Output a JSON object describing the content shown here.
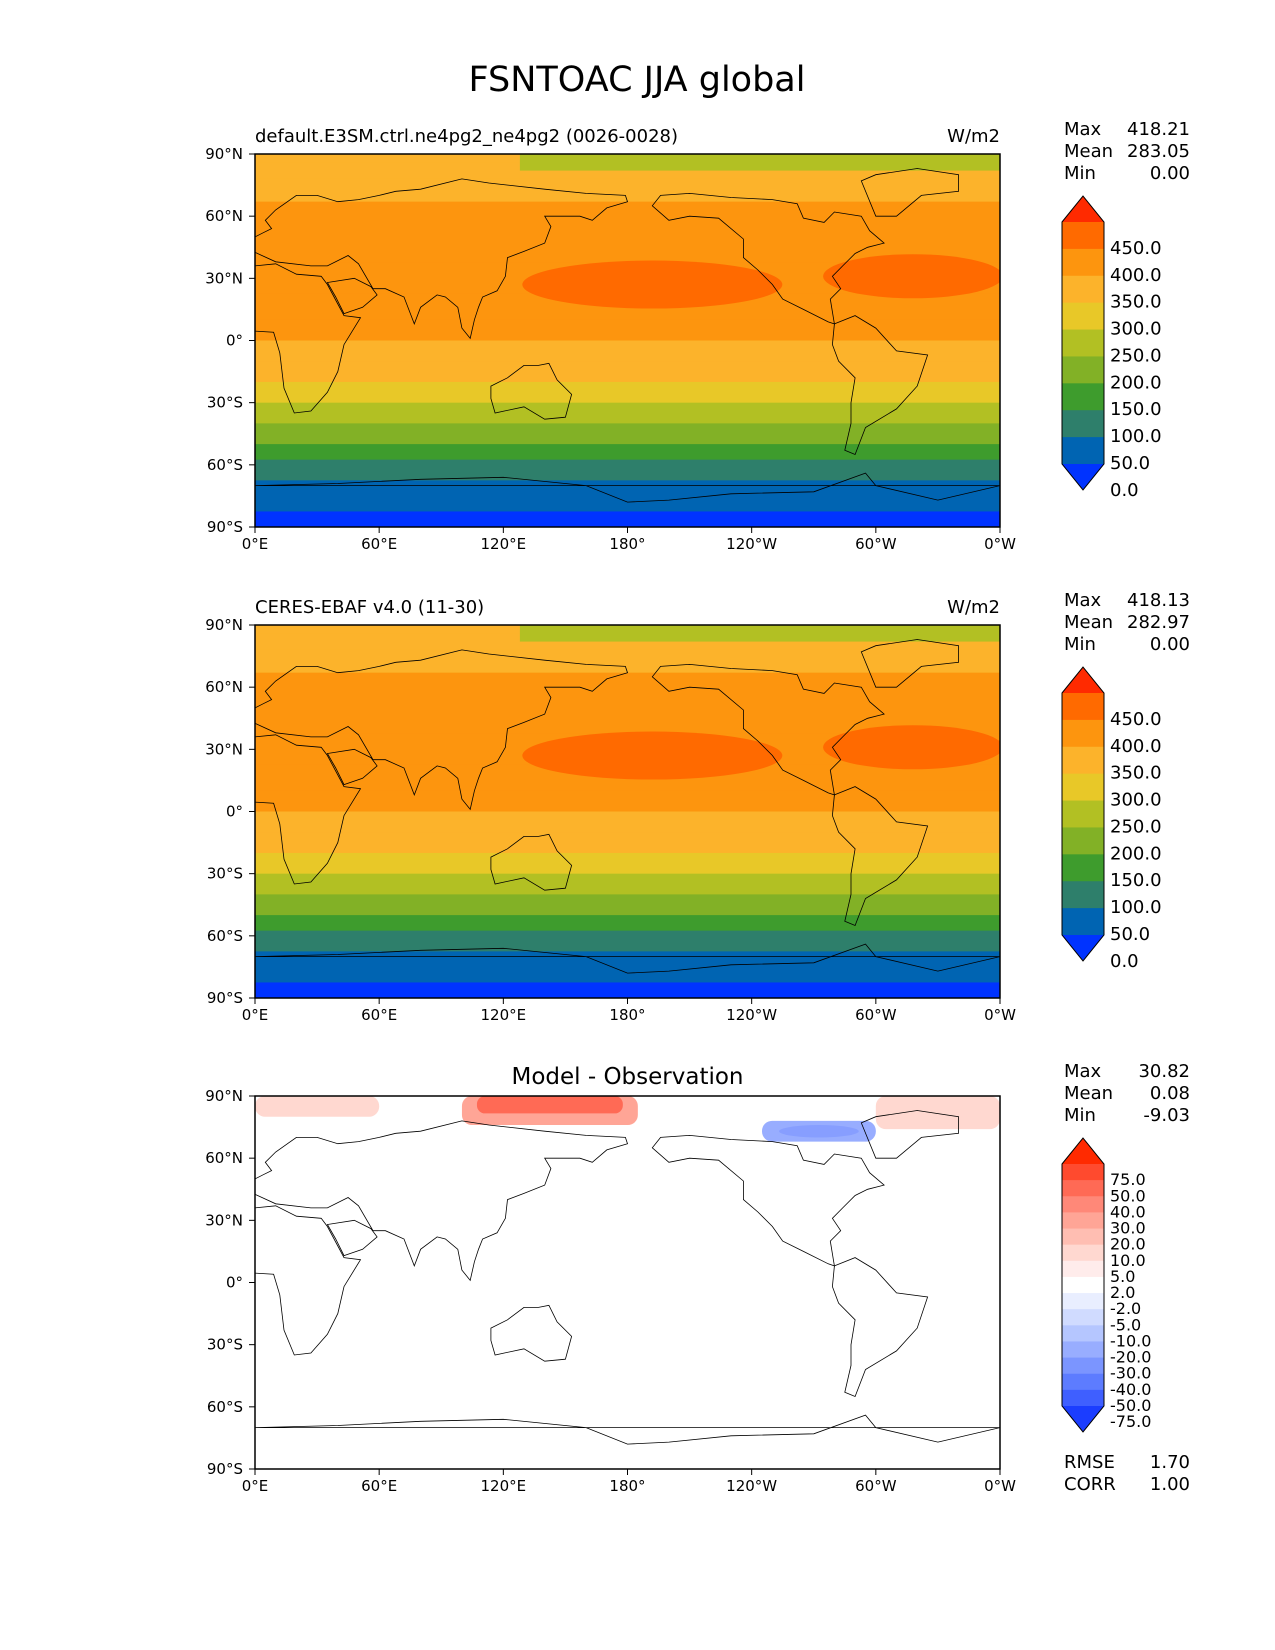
{
  "title": "FSNTOAC JJA global",
  "axes": {
    "lon_ticks": [
      "0°E",
      "60°E",
      "120°E",
      "180°",
      "120°W",
      "60°W",
      "0°W"
    ],
    "lat_ticks": [
      "90°N",
      "60°N",
      "30°N",
      "0°",
      "30°S",
      "60°S",
      "90°S"
    ]
  },
  "panels": [
    {
      "left_title": "default.E3SM.ctrl.ne4pg2_ne4pg2 (0026-0028)",
      "center_title": "",
      "units": "W/m2",
      "stats": [
        {
          "label": "Max",
          "value": "418.21"
        },
        {
          "label": "Mean",
          "value": "283.05"
        },
        {
          "label": "Min",
          "value": "0.00"
        }
      ],
      "colorbar_labels": [
        "450.0",
        "400.0",
        "350.0",
        "300.0",
        "250.0",
        "200.0",
        "150.0",
        "100.0",
        "50.0",
        "0.0"
      ],
      "footer": []
    },
    {
      "left_title": "CERES-EBAF v4.0 (11-30)",
      "center_title": "",
      "units": "W/m2",
      "stats": [
        {
          "label": "Max",
          "value": "418.13"
        },
        {
          "label": "Mean",
          "value": "282.97"
        },
        {
          "label": "Min",
          "value": "0.00"
        }
      ],
      "colorbar_labels": [
        "450.0",
        "400.0",
        "350.0",
        "300.0",
        "250.0",
        "200.0",
        "150.0",
        "100.0",
        "50.0",
        "0.0"
      ],
      "footer": []
    },
    {
      "left_title": "",
      "center_title": "Model - Observation",
      "units": "",
      "stats": [
        {
          "label": "Max",
          "value": "30.82"
        },
        {
          "label": "Mean",
          "value": "0.08"
        },
        {
          "label": "Min",
          "value": "-9.03"
        }
      ],
      "colorbar_labels": [
        "75.0",
        "50.0",
        "40.0",
        "30.0",
        "20.0",
        "10.0",
        "5.0",
        "2.0",
        "-2.0",
        "-5.0",
        "-10.0",
        "-20.0",
        "-30.0",
        "-40.0",
        "-50.0",
        "-75.0"
      ],
      "footer": [
        {
          "label": "RMSE",
          "value": "1.70"
        },
        {
          "label": "CORR",
          "value": "1.00"
        }
      ]
    }
  ],
  "colors": {
    "field_bands": [
      "#ff2a00",
      "#ff6a00",
      "#fd950e",
      "#fcb32b",
      "#e8c828",
      "#b2c023",
      "#82b126",
      "#3e9c2d",
      "#2e7f6b",
      "#0064b2",
      "#0033ff"
    ],
    "diff_scale": [
      "#ff2a00",
      "#ff4a2e",
      "#ff6a55",
      "#ff8878",
      "#ffa596",
      "#ffbeb2",
      "#ffd8d0",
      "#ffeceb",
      "#ffffff",
      "#e9eeff",
      "#d0dbff",
      "#b5c6ff",
      "#98adff",
      "#7b95ff",
      "#5d7cff",
      "#3f5fff",
      "#1b3dff"
    ],
    "diff_positive": "#ff6a55",
    "diff_negative": "#7b95ff"
  },
  "chart_data": [
    {
      "type": "heatmap",
      "title": "default.E3SM.ctrl.ne4pg2_ne4pg2 (0026-0028)",
      "units": "W/m2",
      "lon_range": [
        0,
        360
      ],
      "lat_range": [
        -90,
        90
      ],
      "color_levels": [
        0,
        50,
        100,
        150,
        200,
        250,
        300,
        350,
        400,
        450
      ],
      "zonal_profile": [
        {
          "lat": 90,
          "value": 300
        },
        {
          "lat": 82,
          "value": 320
        },
        {
          "lat": 74,
          "value": 345
        },
        {
          "lat": 60,
          "value": 370
        },
        {
          "lat": 45,
          "value": 385
        },
        {
          "lat": 30,
          "value": 390
        },
        {
          "lat": 15,
          "value": 375
        },
        {
          "lat": 5,
          "value": 360
        },
        {
          "lat": -5,
          "value": 335
        },
        {
          "lat": -15,
          "value": 300
        },
        {
          "lat": -25,
          "value": 255
        },
        {
          "lat": -35,
          "value": 205
        },
        {
          "lat": -45,
          "value": 160
        },
        {
          "lat": -55,
          "value": 105
        },
        {
          "lat": -60,
          "value": 75
        },
        {
          "lat": -75,
          "value": 25
        },
        {
          "lat": -90,
          "value": 0
        }
      ],
      "stats": {
        "max": 418.21,
        "mean": 283.05,
        "min": 0.0
      }
    },
    {
      "type": "heatmap",
      "title": "CERES-EBAF v4.0 (11-30)",
      "units": "W/m2",
      "lon_range": [
        0,
        360
      ],
      "lat_range": [
        -90,
        90
      ],
      "color_levels": [
        0,
        50,
        100,
        150,
        200,
        250,
        300,
        350,
        400,
        450
      ],
      "zonal_profile": [
        {
          "lat": 90,
          "value": 300
        },
        {
          "lat": 82,
          "value": 320
        },
        {
          "lat": 74,
          "value": 345
        },
        {
          "lat": 60,
          "value": 370
        },
        {
          "lat": 45,
          "value": 385
        },
        {
          "lat": 30,
          "value": 390
        },
        {
          "lat": 15,
          "value": 375
        },
        {
          "lat": 5,
          "value": 360
        },
        {
          "lat": -5,
          "value": 335
        },
        {
          "lat": -15,
          "value": 300
        },
        {
          "lat": -25,
          "value": 255
        },
        {
          "lat": -35,
          "value": 205
        },
        {
          "lat": -45,
          "value": 160
        },
        {
          "lat": -55,
          "value": 105
        },
        {
          "lat": -60,
          "value": 75
        },
        {
          "lat": -75,
          "value": 25
        },
        {
          "lat": -90,
          "value": 0
        }
      ],
      "stats": {
        "max": 418.13,
        "mean": 282.97,
        "min": 0.0
      }
    },
    {
      "type": "heatmap",
      "title": "Model - Observation",
      "lon_range": [
        0,
        360
      ],
      "lat_range": [
        -90,
        90
      ],
      "color_levels": [
        -75,
        -50,
        -40,
        -30,
        -20,
        -10,
        -5,
        -2,
        2,
        5,
        10,
        20,
        30,
        40,
        50,
        75
      ],
      "anomalies": [
        {
          "lon_range": [
            0,
            60
          ],
          "lat_range": [
            80,
            90
          ],
          "value": 5
        },
        {
          "lon_range": [
            100,
            185
          ],
          "lat_range": [
            76,
            90
          ],
          "value": 25
        },
        {
          "lon_range": [
            245,
            300
          ],
          "lat_range": [
            68,
            78
          ],
          "value": -7
        },
        {
          "lon_range": [
            300,
            360
          ],
          "lat_range": [
            74,
            90
          ],
          "value": 8
        }
      ],
      "stats": {
        "max": 30.82,
        "mean": 0.08,
        "min": -9.03,
        "rmse": 1.7,
        "corr": 1.0
      }
    }
  ]
}
